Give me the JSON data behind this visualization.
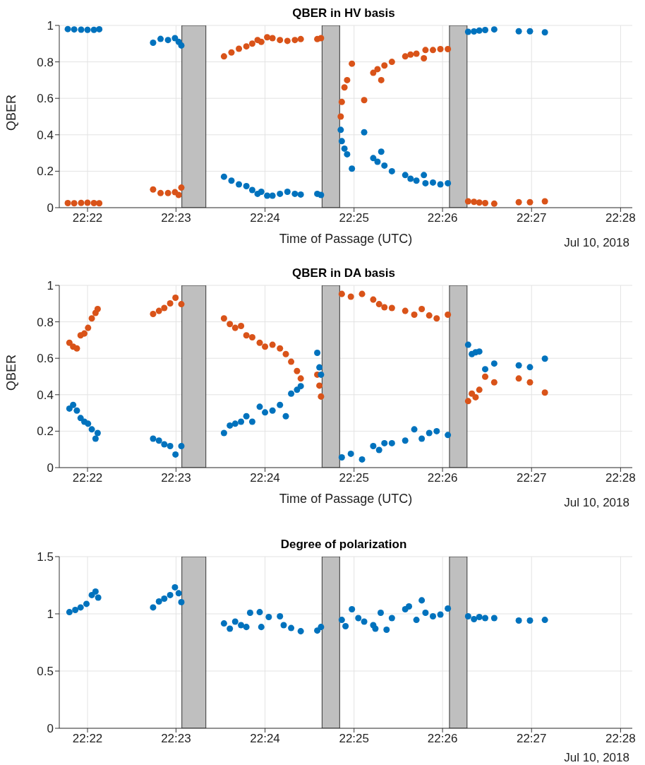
{
  "chart_data": [
    {
      "type": "scatter",
      "title": "QBER in HV basis",
      "xlabel": "Time of Passage (UTC)",
      "ylabel": "QBER",
      "annotations": [
        "Jul 10, 2018"
      ],
      "marker": "circle",
      "grid": true,
      "legend": false,
      "xlim": [
        22.3614,
        22.4689
      ],
      "xticks": [
        {
          "value": 22.3667,
          "label": "22:22"
        },
        {
          "value": 22.3833,
          "label": "22:23"
        },
        {
          "value": 22.4,
          "label": "22:24"
        },
        {
          "value": 22.4167,
          "label": "22:25"
        },
        {
          "value": 22.4333,
          "label": "22:26"
        },
        {
          "value": 22.45,
          "label": "22:27"
        },
        {
          "value": 22.4667,
          "label": "22:28"
        }
      ],
      "ylim": [
        0,
        1
      ],
      "yticks": [
        0,
        0.2,
        0.4,
        0.6,
        0.8,
        1
      ],
      "bands": [
        {
          "axis": "x",
          "from": 22.3844,
          "to": 22.3889,
          "color": "#bfbfbf"
        },
        {
          "axis": "x",
          "from": 22.4107,
          "to": 22.414,
          "color": "#bfbfbf"
        },
        {
          "axis": "x",
          "from": 22.4346,
          "to": 22.4379,
          "color": "#bfbfbf"
        }
      ],
      "series": [
        {
          "color": "#0072bd",
          "x": [
            22.363,
            22.3642,
            22.3655,
            22.3667,
            22.3679,
            22.3689,
            22.379,
            22.3804,
            22.3818,
            22.3831,
            22.3838,
            22.3843,
            22.3923,
            22.3937,
            22.3951,
            22.3965,
            22.3976,
            22.3986,
            22.3993,
            22.4004,
            22.4014,
            22.4028,
            22.4042,
            22.4056,
            22.4067,
            22.4098,
            22.4105,
            22.4142,
            22.4144,
            22.4149,
            22.4154,
            22.4163,
            22.4186,
            22.4203,
            22.4211,
            22.4218,
            22.4224,
            22.4238,
            22.4263,
            22.4273,
            22.4284,
            22.4298,
            22.4301,
            22.4315,
            22.4329,
            22.4343,
            22.4381,
            22.4392,
            22.4402,
            22.4413,
            22.443,
            22.4476,
            22.4497,
            22.4525
          ],
          "values": [
            0.98,
            0.978,
            0.977,
            0.976,
            0.976,
            0.979,
            0.905,
            0.926,
            0.92,
            0.93,
            0.91,
            0.89,
            0.17,
            0.148,
            0.128,
            0.118,
            0.097,
            0.076,
            0.087,
            0.066,
            0.066,
            0.076,
            0.087,
            0.076,
            0.072,
            0.076,
            0.07,
            0.427,
            0.365,
            0.324,
            0.293,
            0.214,
            0.414,
            0.272,
            0.252,
            0.307,
            0.231,
            0.2,
            0.179,
            0.159,
            0.148,
            0.179,
            0.134,
            0.138,
            0.128,
            0.134,
            0.965,
            0.967,
            0.972,
            0.975,
            0.978,
            0.968,
            0.968,
            0.962
          ]
        },
        {
          "color": "#d95319",
          "x": [
            22.363,
            22.3642,
            22.3655,
            22.3667,
            22.3679,
            22.3689,
            22.379,
            22.3804,
            22.3818,
            22.3831,
            22.3838,
            22.3843,
            22.3923,
            22.3937,
            22.3951,
            22.3965,
            22.3976,
            22.3986,
            22.3993,
            22.4004,
            22.4014,
            22.4028,
            22.4042,
            22.4056,
            22.4067,
            22.4098,
            22.4105,
            22.4142,
            22.4144,
            22.4149,
            22.4154,
            22.4163,
            22.4186,
            22.4203,
            22.4211,
            22.4218,
            22.4224,
            22.4238,
            22.4263,
            22.4273,
            22.4284,
            22.4298,
            22.4301,
            22.4315,
            22.4329,
            22.4343,
            22.4381,
            22.4392,
            22.4402,
            22.4413,
            22.443,
            22.4476,
            22.4497,
            22.4525
          ],
          "values": [
            0.025,
            0.024,
            0.026,
            0.027,
            0.025,
            0.024,
            0.1,
            0.08,
            0.08,
            0.085,
            0.07,
            0.11,
            0.83,
            0.852,
            0.872,
            0.885,
            0.9,
            0.92,
            0.91,
            0.935,
            0.93,
            0.92,
            0.915,
            0.92,
            0.925,
            0.925,
            0.93,
            0.5,
            0.58,
            0.66,
            0.7,
            0.79,
            0.59,
            0.74,
            0.76,
            0.7,
            0.78,
            0.8,
            0.83,
            0.84,
            0.845,
            0.82,
            0.865,
            0.865,
            0.87,
            0.87,
            0.035,
            0.032,
            0.028,
            0.025,
            0.022,
            0.03,
            0.03,
            0.035
          ]
        }
      ]
    },
    {
      "type": "scatter",
      "title": "QBER in DA basis",
      "xlabel": "Time of Passage (UTC)",
      "ylabel": "QBER",
      "annotations": [
        "Jul 10, 2018"
      ],
      "marker": "circle",
      "grid": true,
      "legend": false,
      "xlim": [
        22.3614,
        22.4689
      ],
      "xticks": [
        {
          "value": 22.3667,
          "label": "22:22"
        },
        {
          "value": 22.3833,
          "label": "22:23"
        },
        {
          "value": 22.4,
          "label": "22:24"
        },
        {
          "value": 22.4167,
          "label": "22:25"
        },
        {
          "value": 22.4333,
          "label": "22:26"
        },
        {
          "value": 22.45,
          "label": "22:27"
        },
        {
          "value": 22.4667,
          "label": "22:28"
        }
      ],
      "ylim": [
        0,
        1
      ],
      "yticks": [
        0,
        0.2,
        0.4,
        0.6,
        0.8,
        1
      ],
      "bands": [
        {
          "axis": "x",
          "from": 22.3844,
          "to": 22.3889,
          "color": "#bfbfbf"
        },
        {
          "axis": "x",
          "from": 22.4107,
          "to": 22.414,
          "color": "#bfbfbf"
        },
        {
          "axis": "x",
          "from": 22.4346,
          "to": 22.4379,
          "color": "#bfbfbf"
        }
      ],
      "series": [
        {
          "color": "#d95319",
          "x": [
            22.3633,
            22.364,
            22.3647,
            22.3654,
            22.3661,
            22.3668,
            22.3675,
            22.3682,
            22.3686,
            22.379,
            22.3801,
            22.3811,
            22.3822,
            22.3832,
            22.3843,
            22.3923,
            22.3934,
            22.3944,
            22.3955,
            22.3965,
            22.3976,
            22.399,
            22.4,
            22.4014,
            22.4028,
            22.4039,
            22.4049,
            22.406,
            22.4067,
            22.4098,
            22.4102,
            22.4105,
            22.4144,
            22.4161,
            22.4182,
            22.4203,
            22.4214,
            22.4224,
            22.4238,
            22.4263,
            22.428,
            22.4294,
            22.4308,
            22.4322,
            22.4343,
            22.4381,
            22.4388,
            22.4395,
            22.4402,
            22.4413,
            22.443,
            22.4476,
            22.4497,
            22.4525
          ],
          "values": [
            0.685,
            0.664,
            0.654,
            0.726,
            0.736,
            0.767,
            0.819,
            0.849,
            0.87,
            0.843,
            0.86,
            0.876,
            0.901,
            0.932,
            0.897,
            0.819,
            0.788,
            0.767,
            0.777,
            0.726,
            0.715,
            0.685,
            0.664,
            0.674,
            0.654,
            0.623,
            0.581,
            0.53,
            0.489,
            0.51,
            0.45,
            0.39,
            0.953,
            0.938,
            0.953,
            0.922,
            0.897,
            0.88,
            0.876,
            0.86,
            0.839,
            0.87,
            0.835,
            0.819,
            0.839,
            0.365,
            0.406,
            0.386,
            0.427,
            0.499,
            0.468,
            0.489,
            0.468,
            0.412
          ]
        },
        {
          "color": "#0072bd",
          "x": [
            22.3633,
            22.364,
            22.3647,
            22.3654,
            22.3661,
            22.3668,
            22.3675,
            22.3682,
            22.3686,
            22.379,
            22.3801,
            22.3811,
            22.3822,
            22.3832,
            22.3843,
            22.3923,
            22.3934,
            22.3944,
            22.3955,
            22.3965,
            22.3976,
            22.399,
            22.4,
            22.4014,
            22.4028,
            22.4039,
            22.4049,
            22.406,
            22.4067,
            22.4098,
            22.4102,
            22.4105,
            22.4144,
            22.4161,
            22.4182,
            22.4203,
            22.4214,
            22.4224,
            22.4238,
            22.4263,
            22.428,
            22.4294,
            22.4308,
            22.4322,
            22.4343,
            22.4381,
            22.4388,
            22.4395,
            22.4402,
            22.4413,
            22.443,
            22.4476,
            22.4497,
            22.4525
          ],
          "values": [
            0.324,
            0.344,
            0.313,
            0.272,
            0.252,
            0.241,
            0.21,
            0.159,
            0.19,
            0.159,
            0.148,
            0.128,
            0.118,
            0.072,
            0.118,
            0.19,
            0.231,
            0.241,
            0.252,
            0.282,
            0.252,
            0.334,
            0.303,
            0.313,
            0.344,
            0.282,
            0.406,
            0.427,
            0.447,
            0.63,
            0.55,
            0.51,
            0.056,
            0.076,
            0.045,
            0.118,
            0.097,
            0.134,
            0.134,
            0.148,
            0.21,
            0.159,
            0.19,
            0.2,
            0.179,
            0.674,
            0.623,
            0.633,
            0.637,
            0.54,
            0.571,
            0.561,
            0.551,
            0.598
          ]
        }
      ]
    },
    {
      "type": "scatter",
      "title": "Degree of polarization",
      "annotations": [
        "Jul 10, 2018"
      ],
      "marker": "circle",
      "grid": true,
      "legend": false,
      "xlim": [
        22.3614,
        22.4689
      ],
      "xticks": [
        {
          "value": 22.3667,
          "label": "22:22"
        },
        {
          "value": 22.3833,
          "label": "22:23"
        },
        {
          "value": 22.4,
          "label": "22:24"
        },
        {
          "value": 22.4167,
          "label": "22:25"
        },
        {
          "value": 22.4333,
          "label": "22:26"
        },
        {
          "value": 22.45,
          "label": "22:27"
        },
        {
          "value": 22.4667,
          "label": "22:28"
        }
      ],
      "ylim": [
        0,
        1.5
      ],
      "yticks": [
        0,
        0.5,
        1,
        1.5
      ],
      "bands": [
        {
          "axis": "x",
          "from": 22.3844,
          "to": 22.3889,
          "color": "#bfbfbf"
        },
        {
          "axis": "x",
          "from": 22.4107,
          "to": 22.414,
          "color": "#bfbfbf"
        },
        {
          "axis": "x",
          "from": 22.4346,
          "to": 22.4379,
          "color": "#bfbfbf"
        }
      ],
      "series": [
        {
          "color": "#0072bd",
          "x": [
            22.3633,
            22.3644,
            22.3654,
            22.3665,
            22.3675,
            22.3682,
            22.3687,
            22.379,
            22.3801,
            22.3811,
            22.3822,
            22.3831,
            22.3838,
            22.3843,
            22.3923,
            22.3934,
            22.3944,
            22.3955,
            22.3965,
            22.3972,
            22.399,
            22.3993,
            22.4007,
            22.4028,
            22.4035,
            22.4049,
            22.4067,
            22.4098,
            22.4105,
            22.4144,
            22.4151,
            22.4163,
            22.4175,
            22.4186,
            22.4203,
            22.4207,
            22.4217,
            22.4228,
            22.4238,
            22.4263,
            22.427,
            22.4284,
            22.4294,
            22.4301,
            22.4315,
            22.4329,
            22.4343,
            22.4381,
            22.4392,
            22.4402,
            22.4413,
            22.443,
            22.4476,
            22.4497,
            22.4525
          ],
          "values": [
            1.015,
            1.034,
            1.056,
            1.087,
            1.164,
            1.195,
            1.142,
            1.056,
            1.108,
            1.133,
            1.164,
            1.232,
            1.18,
            1.102,
            0.916,
            0.87,
            0.932,
            0.901,
            0.885,
            1.009,
            1.015,
            0.885,
            0.972,
            0.978,
            0.901,
            0.876,
            0.848,
            0.854,
            0.885,
            0.947,
            0.892,
            1.04,
            0.963,
            0.932,
            0.901,
            0.87,
            1.009,
            0.861,
            0.963,
            1.04,
            1.065,
            0.947,
            1.118,
            1.009,
            0.978,
            0.994,
            1.046,
            0.978,
            0.954,
            0.972,
            0.963,
            0.963,
            0.941,
            0.941,
            0.947
          ]
        }
      ]
    }
  ]
}
